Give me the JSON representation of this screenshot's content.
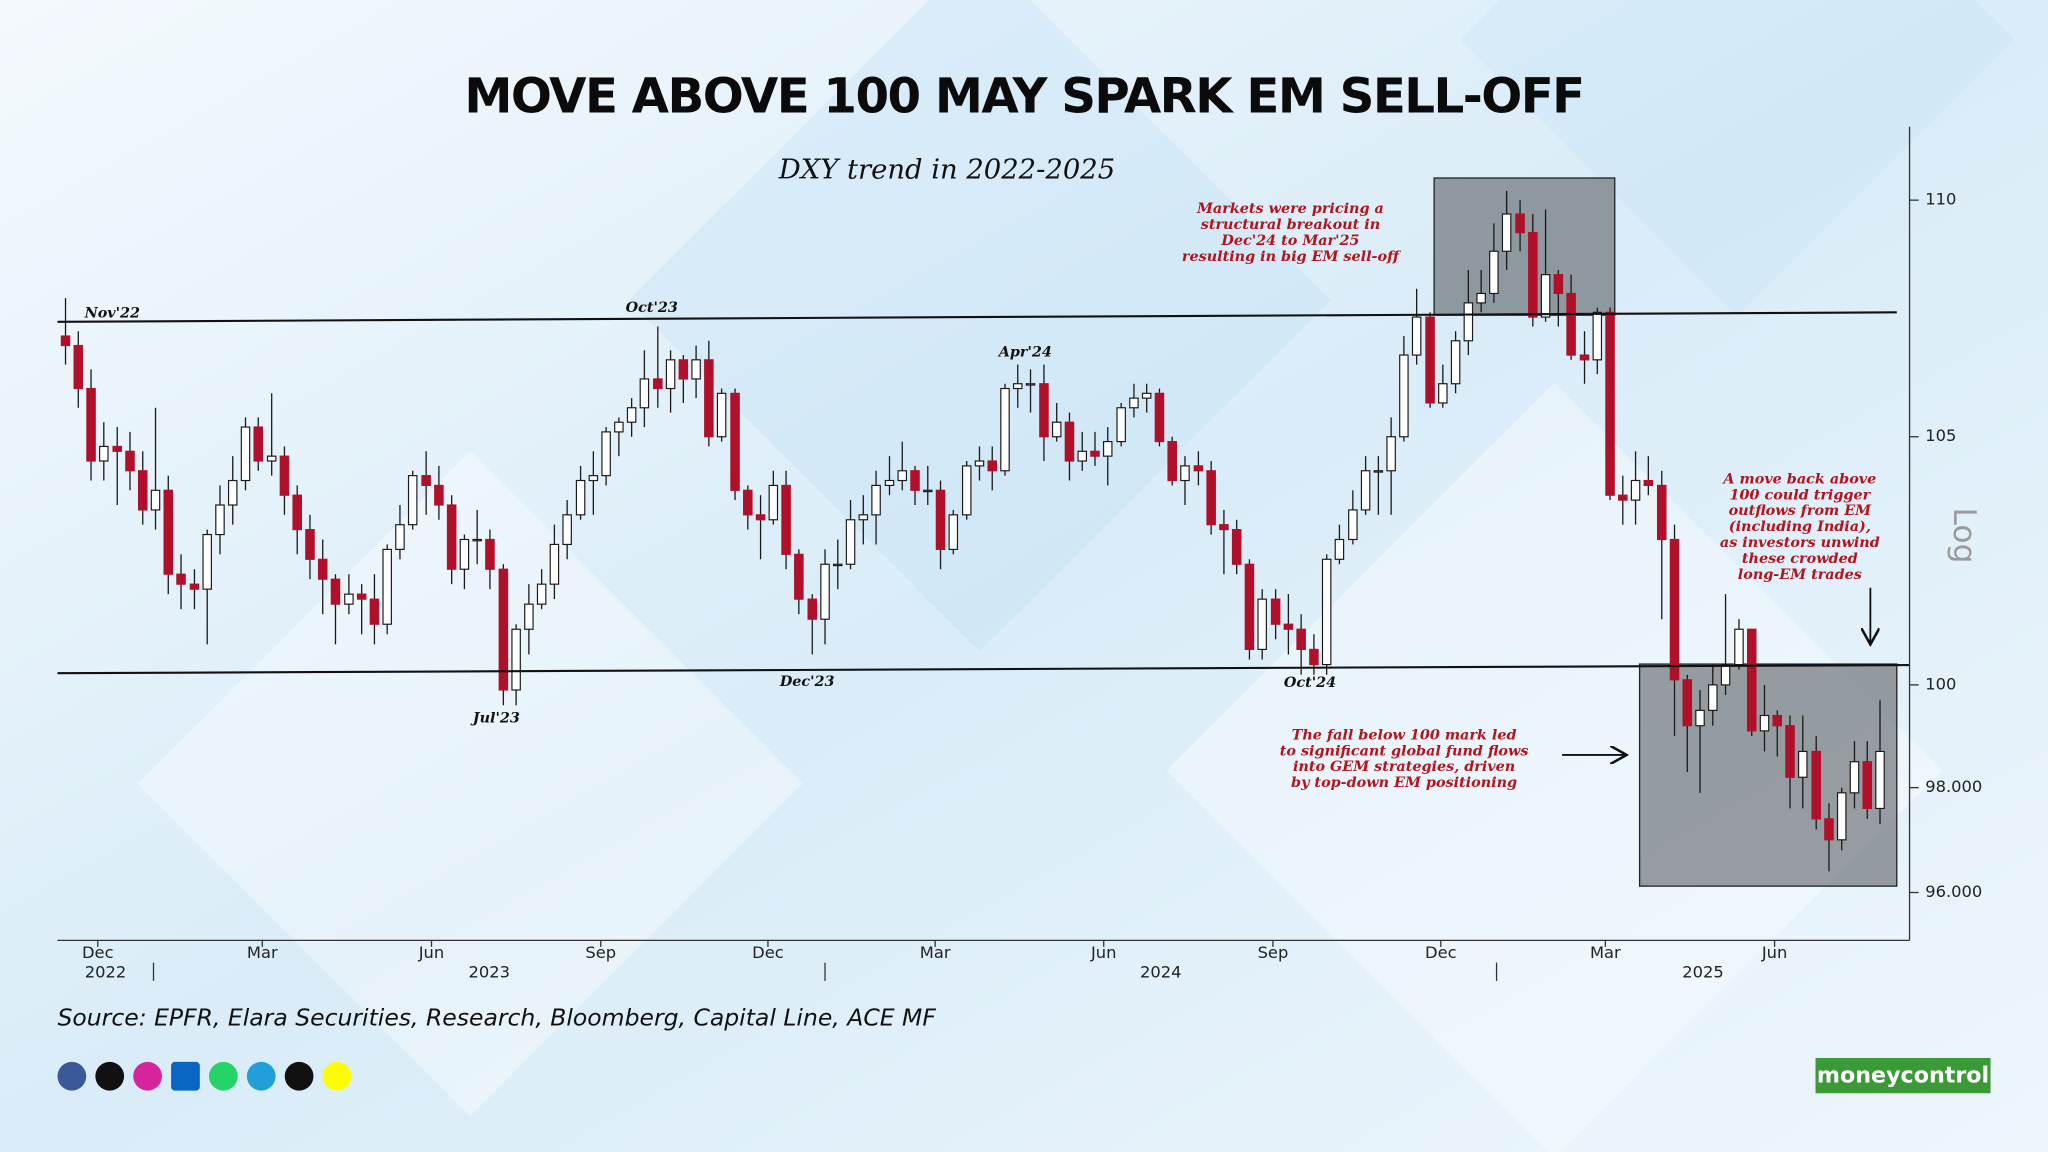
{
  "chart_data": {
    "type": "candlestick",
    "title": "MOVE ABOVE 100 MAY SPARK EM SELL-OFF",
    "subtitle": "DXY trend in 2022-2025",
    "source": "Source: EPFR, Elara Securities, Research, Bloomberg, Capital Line, ACE MF",
    "logo": "moneycontrol",
    "y_axis_label": "Log",
    "y_scale": "log",
    "up_color": "#ffffff",
    "down_color": "#b0102a",
    "xlim": [
      2022.857,
      2025.615
    ],
    "ylim": [
      95.1,
      111.6
    ],
    "yticks": [
      {
        "value": 96,
        "label": "96.000"
      },
      {
        "value": 98,
        "label": "98.000"
      },
      100,
      105,
      110
    ],
    "xticks": [
      {
        "value": 2022.917,
        "label": "Dec"
      },
      {
        "value": 2023.162,
        "label": "Mar"
      },
      {
        "value": 2023.414,
        "label": "Jun"
      },
      {
        "value": 2023.666,
        "label": "Sep"
      },
      {
        "value": 2023.915,
        "label": "Dec"
      },
      {
        "value": 2024.164,
        "label": "Mar"
      },
      {
        "value": 2024.415,
        "label": "Jun"
      },
      {
        "value": 2024.667,
        "label": "Sep"
      },
      {
        "value": 2024.917,
        "label": "Dec"
      },
      {
        "value": 2025.162,
        "label": "Mar"
      },
      {
        "value": 2025.414,
        "label": "Jun"
      }
    ],
    "year_ticks": [
      2022,
      2023,
      2024,
      2025
    ],
    "x": [
      2022.869,
      2022.888,
      2022.907,
      2022.926,
      2022.946,
      2022.965,
      2022.984,
      2023.003,
      2023.022,
      2023.041,
      2023.061,
      2023.08,
      2023.099,
      2023.118,
      2023.137,
      2023.156,
      2023.176,
      2023.195,
      2023.214,
      2023.233,
      2023.252,
      2023.271,
      2023.291,
      2023.31,
      2023.329,
      2023.348,
      2023.367,
      2023.386,
      2023.406,
      2023.425,
      2023.444,
      2023.463,
      2023.482,
      2023.501,
      2023.521,
      2023.54,
      2023.559,
      2023.578,
      2023.597,
      2023.616,
      2023.636,
      2023.655,
      2023.674,
      2023.693,
      2023.712,
      2023.731,
      2023.751,
      2023.77,
      2023.789,
      2023.808,
      2023.827,
      2023.846,
      2023.866,
      2023.885,
      2023.904,
      2023.923,
      2023.942,
      2023.961,
      2023.981,
      2024.0,
      2024.019,
      2024.038,
      2024.057,
      2024.076,
      2024.096,
      2024.115,
      2024.134,
      2024.153,
      2024.172,
      2024.191,
      2024.211,
      2024.23,
      2024.249,
      2024.268,
      2024.287,
      2024.306,
      2024.326,
      2024.345,
      2024.364,
      2024.383,
      2024.402,
      2024.421,
      2024.441,
      2024.46,
      2024.479,
      2024.498,
      2024.517,
      2024.536,
      2024.556,
      2024.575,
      2024.594,
      2024.613,
      2024.632,
      2024.651,
      2024.671,
      2024.69,
      2024.709,
      2024.728,
      2024.747,
      2024.766,
      2024.786,
      2024.805,
      2024.824,
      2024.843,
      2024.862,
      2024.881,
      2024.901,
      2024.92,
      2024.939,
      2024.958,
      2024.977,
      2024.996,
      2025.015,
      2025.035,
      2025.054,
      2025.073,
      2025.092,
      2025.111,
      2025.131,
      2025.15,
      2025.169,
      2025.188,
      2025.207,
      2025.226,
      2025.246,
      2025.265,
      2025.284,
      2025.303,
      2025.322,
      2025.341,
      2025.361,
      2025.38,
      2025.399,
      2025.418,
      2025.437,
      2025.456,
      2025.476,
      2025.495,
      2025.514,
      2025.533,
      2025.552,
      2025.571
    ],
    "open": [
      107.1,
      106.9,
      106.0,
      104.5,
      104.8,
      104.7,
      104.3,
      103.5,
      103.9,
      102.2,
      102.0,
      101.9,
      103.0,
      103.6,
      104.1,
      105.2,
      104.5,
      104.6,
      103.8,
      103.1,
      102.5,
      102.1,
      101.6,
      101.8,
      101.7,
      101.2,
      102.7,
      103.2,
      104.2,
      104.0,
      103.6,
      102.3,
      102.9,
      102.9,
      102.3,
      99.9,
      101.1,
      101.6,
      102.0,
      102.8,
      103.4,
      104.1,
      104.2,
      105.1,
      105.3,
      105.6,
      106.2,
      106.0,
      106.6,
      106.2,
      106.6,
      105.0,
      105.9,
      103.9,
      103.4,
      103.3,
      104.0,
      102.6,
      101.7,
      101.3,
      102.4,
      102.4,
      103.3,
      103.4,
      104.0,
      104.1,
      104.3,
      103.9,
      103.9,
      102.7,
      103.4,
      104.4,
      104.5,
      104.3,
      106.0,
      106.1,
      106.1,
      105.0,
      105.3,
      104.5,
      104.7,
      104.6,
      104.9,
      105.6,
      105.8,
      105.9,
      104.9,
      104.1,
      104.4,
      104.3,
      103.2,
      103.1,
      102.4,
      100.7,
      101.7,
      101.2,
      101.1,
      100.7,
      100.4,
      102.5,
      102.9,
      103.5,
      104.3,
      104.3,
      105.0,
      106.7,
      107.5,
      105.7,
      106.1,
      107.0,
      107.8,
      108.0,
      108.9,
      109.7,
      109.3,
      107.5,
      108.4,
      108.0,
      106.7,
      106.6,
      107.6,
      103.8,
      103.7,
      104.1,
      104.0,
      102.9,
      100.1,
      99.2,
      99.5,
      100.0,
      100.4,
      101.1,
      99.1,
      99.4,
      99.2,
      98.2,
      98.7,
      97.4,
      97.0,
      97.9,
      98.5,
      97.6
    ],
    "high": [
      107.9,
      107.2,
      106.4,
      105.3,
      105.2,
      105.1,
      104.7,
      105.6,
      104.2,
      102.6,
      102.3,
      103.1,
      104.0,
      104.6,
      105.4,
      105.4,
      105.9,
      104.8,
      104.0,
      103.4,
      102.9,
      102.2,
      102.2,
      102.0,
      102.2,
      102.8,
      103.6,
      104.3,
      104.7,
      104.4,
      103.8,
      103.0,
      103.5,
      103.1,
      102.4,
      101.2,
      102.0,
      102.3,
      103.2,
      103.7,
      104.4,
      104.7,
      105.2,
      105.4,
      105.8,
      106.8,
      107.3,
      106.8,
      106.7,
      106.9,
      107.0,
      106.0,
      106.0,
      104.0,
      103.8,
      104.3,
      104.3,
      102.7,
      101.8,
      102.7,
      102.9,
      103.7,
      103.8,
      104.3,
      104.6,
      104.9,
      104.4,
      104.4,
      104.1,
      103.5,
      104.5,
      104.8,
      104.8,
      106.1,
      106.5,
      106.4,
      106.5,
      105.7,
      105.5,
      105.1,
      105.1,
      105.2,
      105.7,
      106.1,
      106.1,
      106.0,
      105.0,
      104.6,
      104.7,
      104.5,
      103.5,
      103.3,
      102.5,
      101.9,
      101.9,
      101.8,
      101.4,
      101.0,
      102.6,
      103.2,
      103.9,
      104.6,
      104.6,
      105.4,
      107.1,
      108.1,
      107.6,
      106.5,
      107.2,
      108.5,
      108.5,
      109.5,
      110.2,
      110.0,
      109.7,
      109.8,
      108.5,
      108.4,
      107.2,
      107.7,
      107.7,
      104.2,
      104.7,
      104.6,
      104.3,
      103.2,
      100.2,
      99.9,
      100.4,
      101.8,
      101.3,
      101.1,
      100.0,
      99.5,
      99.4,
      99.4,
      99.0,
      97.7,
      98.0,
      98.9,
      98.9,
      99.7
    ],
    "low": [
      106.5,
      105.6,
      104.1,
      104.1,
      103.6,
      103.9,
      103.2,
      103.1,
      101.8,
      101.5,
      101.5,
      100.8,
      102.6,
      103.2,
      103.9,
      104.3,
      104.2,
      103.4,
      102.6,
      102.1,
      101.4,
      100.8,
      101.4,
      101.0,
      100.8,
      101.0,
      102.5,
      103.1,
      103.4,
      103.3,
      102.0,
      101.9,
      102.4,
      101.9,
      99.6,
      99.6,
      100.6,
      101.5,
      101.7,
      102.5,
      103.3,
      103.4,
      104.0,
      104.6,
      105.0,
      105.2,
      105.6,
      105.5,
      105.7,
      105.8,
      104.8,
      104.9,
      103.7,
      103.1,
      102.5,
      103.2,
      102.3,
      101.4,
      100.6,
      100.8,
      101.9,
      102.3,
      102.8,
      102.8,
      103.8,
      103.9,
      103.6,
      103.6,
      102.3,
      102.6,
      103.3,
      104.1,
      103.9,
      104.2,
      105.6,
      105.5,
      104.5,
      104.9,
      104.1,
      104.3,
      104.4,
      104.0,
      104.8,
      105.4,
      105.5,
      104.8,
      104.0,
      103.6,
      104.0,
      103.0,
      102.2,
      102.2,
      100.5,
      100.5,
      100.9,
      100.6,
      100.2,
      100.2,
      100.2,
      102.4,
      102.8,
      103.4,
      103.4,
      103.4,
      104.9,
      106.5,
      105.6,
      105.6,
      105.9,
      106.7,
      107.6,
      107.8,
      108.5,
      108.9,
      107.3,
      107.4,
      107.3,
      106.6,
      106.1,
      106.3,
      103.7,
      103.2,
      103.2,
      103.8,
      101.3,
      99.0,
      98.3,
      97.9,
      99.2,
      99.8,
      100.3,
      99.0,
      98.7,
      98.6,
      97.6,
      97.6,
      97.2,
      96.4,
      96.8,
      97.6,
      97.4,
      97.3
    ],
    "close": [
      106.9,
      106.0,
      104.5,
      104.8,
      104.7,
      104.3,
      103.5,
      103.9,
      102.2,
      102.0,
      101.9,
      103.0,
      103.6,
      104.1,
      105.2,
      104.5,
      104.6,
      103.8,
      103.1,
      102.5,
      102.1,
      101.6,
      101.8,
      101.7,
      101.2,
      102.7,
      103.2,
      104.2,
      104.0,
      103.6,
      102.3,
      102.9,
      102.9,
      102.3,
      99.9,
      101.1,
      101.6,
      102.0,
      102.8,
      103.4,
      104.1,
      104.2,
      105.1,
      105.3,
      105.6,
      106.2,
      106.0,
      106.6,
      106.2,
      106.6,
      105.0,
      105.9,
      103.9,
      103.4,
      103.3,
      104.0,
      102.6,
      101.7,
      101.3,
      102.4,
      102.4,
      103.3,
      103.4,
      104.0,
      104.1,
      104.3,
      103.9,
      103.9,
      102.7,
      103.4,
      104.4,
      104.5,
      104.3,
      106.0,
      106.1,
      106.1,
      105.0,
      105.3,
      104.5,
      104.7,
      104.6,
      104.9,
      105.6,
      105.8,
      105.9,
      104.9,
      104.1,
      104.4,
      104.3,
      103.2,
      103.1,
      102.4,
      100.7,
      101.7,
      101.2,
      101.1,
      100.7,
      100.4,
      102.5,
      102.9,
      103.5,
      104.3,
      104.3,
      105.0,
      106.7,
      107.5,
      105.7,
      106.1,
      107.0,
      107.8,
      108.0,
      108.9,
      109.7,
      109.3,
      107.5,
      108.4,
      108.0,
      106.7,
      106.6,
      107.6,
      103.8,
      103.7,
      104.1,
      104.0,
      102.9,
      100.1,
      99.2,
      99.5,
      100.0,
      100.4,
      101.1,
      99.1,
      99.4,
      99.2,
      98.2,
      98.7,
      97.4,
      97.0,
      97.9,
      98.5,
      97.6,
      98.7
    ],
    "reference_lines": [
      {
        "x": [
          2022.857,
          2025.596
        ],
        "y": [
          107.4,
          107.6
        ]
      },
      {
        "x": [
          2022.857,
          2025.615
        ],
        "y": [
          100.23,
          100.39
        ]
      }
    ],
    "highlight_boxes": [
      {
        "x": [
          2024.907,
          2025.176
        ],
        "y": [
          107.54,
          110.48
        ]
      },
      {
        "x": [
          2025.213,
          2025.596
        ],
        "y": [
          96.12,
          100.41
        ]
      }
    ],
    "point_labels": [
      "Nov'22",
      "Oct'23",
      "Apr'24",
      "Jul'23",
      "Dec'23",
      "Oct'24"
    ],
    "annotations": [
      [
        "Markets were pricing a",
        "structural breakout in",
        "Dec'24 to Mar'25",
        "resulting in big EM sell-off"
      ],
      [
        "A move back above",
        "100 could trigger",
        "outflows from EM",
        "(including India),",
        "as investors unwind",
        "these crowded",
        "long-EM trades"
      ],
      [
        "The fall below 100 mark led",
        "to significant global fund flows",
        "into GEM strategies, driven",
        "by top-down EM positioning"
      ]
    ]
  }
}
